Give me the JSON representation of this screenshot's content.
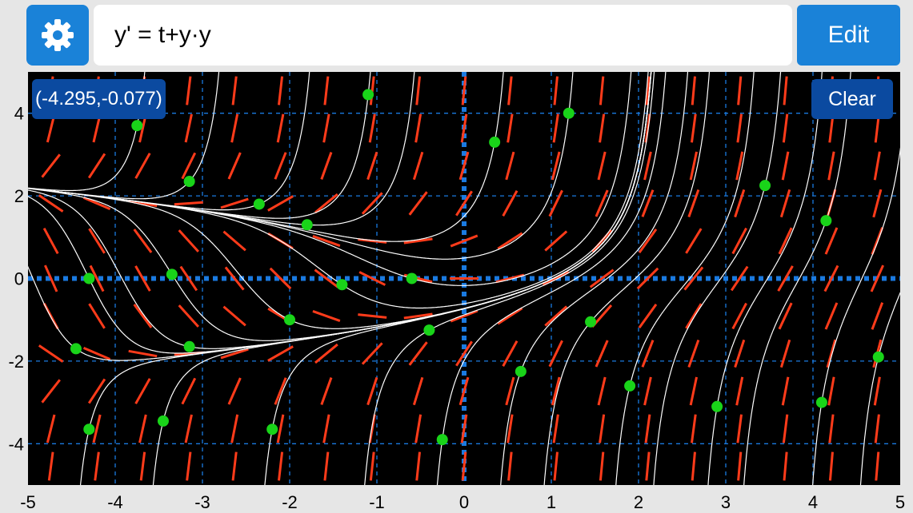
{
  "toolbar": {
    "settings_icon": "gear-icon",
    "equation": "y' = t+y·y",
    "edit_label": "Edit"
  },
  "plot": {
    "coord_readout": "(-4.295,-0.077)",
    "clear_label": "Clear",
    "x_range": [
      -5,
      5
    ],
    "y_range": [
      -5,
      5
    ],
    "x_ticks": [
      "-5",
      "-4",
      "-3",
      "-2",
      "-1",
      "0",
      "1",
      "2",
      "3",
      "4",
      "5"
    ],
    "y_ticks": [
      "4",
      "2",
      "0",
      "-2",
      "-4"
    ],
    "colors": {
      "background": "#000000",
      "grid": "#1a7ae0",
      "slope": "#ff3b1a",
      "solution": "#ffffff",
      "point": "#19d419",
      "button": "#1a82d8"
    },
    "initial_points": [
      [
        -3.75,
        3.7
      ],
      [
        -4.3,
        0.0
      ],
      [
        -4.45,
        -1.7
      ],
      [
        -4.3,
        -3.65
      ],
      [
        -3.15,
        2.35
      ],
      [
        -3.35,
        0.1
      ],
      [
        -3.15,
        -1.65
      ],
      [
        -3.45,
        -3.45
      ],
      [
        -2.35,
        1.8
      ],
      [
        -1.8,
        1.3
      ],
      [
        -2.0,
        -1.0
      ],
      [
        -2.2,
        -3.65
      ],
      [
        -1.1,
        4.45
      ],
      [
        -1.4,
        -0.15
      ],
      [
        -0.6,
        0.0
      ],
      [
        -0.4,
        -1.25
      ],
      [
        -0.25,
        -3.9
      ],
      [
        0.35,
        3.3
      ],
      [
        0.65,
        -2.25
      ],
      [
        1.2,
        4.0
      ],
      [
        1.45,
        -1.05
      ],
      [
        1.9,
        -2.6
      ],
      [
        2.9,
        -3.1
      ],
      [
        3.45,
        2.25
      ],
      [
        4.15,
        1.4
      ],
      [
        4.1,
        -3.0
      ],
      [
        4.75,
        -1.9
      ]
    ]
  }
}
